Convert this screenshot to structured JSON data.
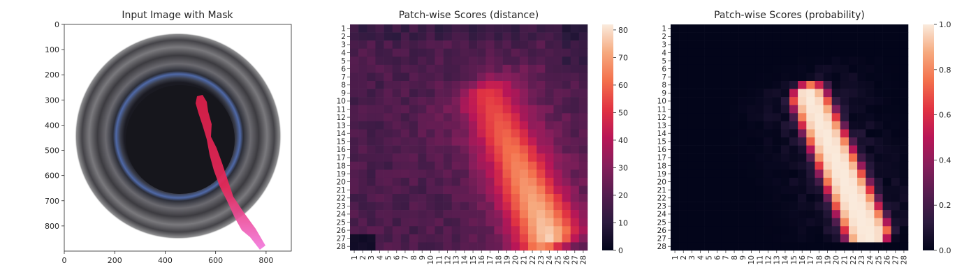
{
  "chart_data": [
    {
      "type": "image",
      "title": "Input Image with Mask",
      "x_ticks": [
        0,
        200,
        400,
        600,
        800
      ],
      "y_ticks": [
        0,
        100,
        200,
        300,
        400,
        500,
        600,
        700,
        800
      ],
      "xlim": [
        0,
        900
      ],
      "ylim": [
        900,
        0
      ],
      "mask_color": "#e8285a"
    },
    {
      "type": "heatmap",
      "title": "Patch-wise Scores (distance)",
      "rows": 28,
      "cols": 28,
      "row_labels": [
        "1",
        "2",
        "3",
        "4",
        "5",
        "6",
        "7",
        "8",
        "9",
        "10",
        "11",
        "12",
        "13",
        "14",
        "15",
        "16",
        "17",
        "18",
        "19",
        "20",
        "21",
        "22",
        "23",
        "24",
        "25",
        "26",
        "27",
        "28"
      ],
      "col_labels": [
        "1",
        "2",
        "3",
        "4",
        "5",
        "6",
        "7",
        "8",
        "9",
        "10",
        "11",
        "12",
        "13",
        "14",
        "15",
        "16",
        "17",
        "18",
        "19",
        "20",
        "21",
        "22",
        "23",
        "24",
        "25",
        "26",
        "27",
        "28"
      ],
      "colorbar_ticks": [
        0,
        10,
        20,
        30,
        40,
        50,
        60,
        70,
        80
      ],
      "vmin": 0,
      "vmax": 82,
      "colormap": "rocket",
      "description_high_region": "diagonal band from row 9 col 16 to row 27 col 25, peak about 80"
    },
    {
      "type": "heatmap",
      "title": "Patch-wise Scores (probability)",
      "rows": 28,
      "cols": 28,
      "row_labels": [
        "1",
        "2",
        "3",
        "4",
        "5",
        "6",
        "7",
        "8",
        "9",
        "10",
        "11",
        "12",
        "13",
        "14",
        "15",
        "16",
        "17",
        "18",
        "19",
        "20",
        "21",
        "22",
        "23",
        "24",
        "25",
        "26",
        "27",
        "28"
      ],
      "col_labels": [
        "1",
        "2",
        "3",
        "4",
        "5",
        "6",
        "7",
        "8",
        "9",
        "10",
        "11",
        "12",
        "13",
        "14",
        "15",
        "16",
        "17",
        "18",
        "19",
        "20",
        "21",
        "22",
        "23",
        "24",
        "25",
        "26",
        "27",
        "28"
      ],
      "colorbar_ticks": [
        "0.0",
        "0.2",
        "0.4",
        "0.6",
        "0.8",
        "1.0"
      ],
      "vmin": 0.0,
      "vmax": 1.0,
      "colormap": "rocket"
    }
  ]
}
